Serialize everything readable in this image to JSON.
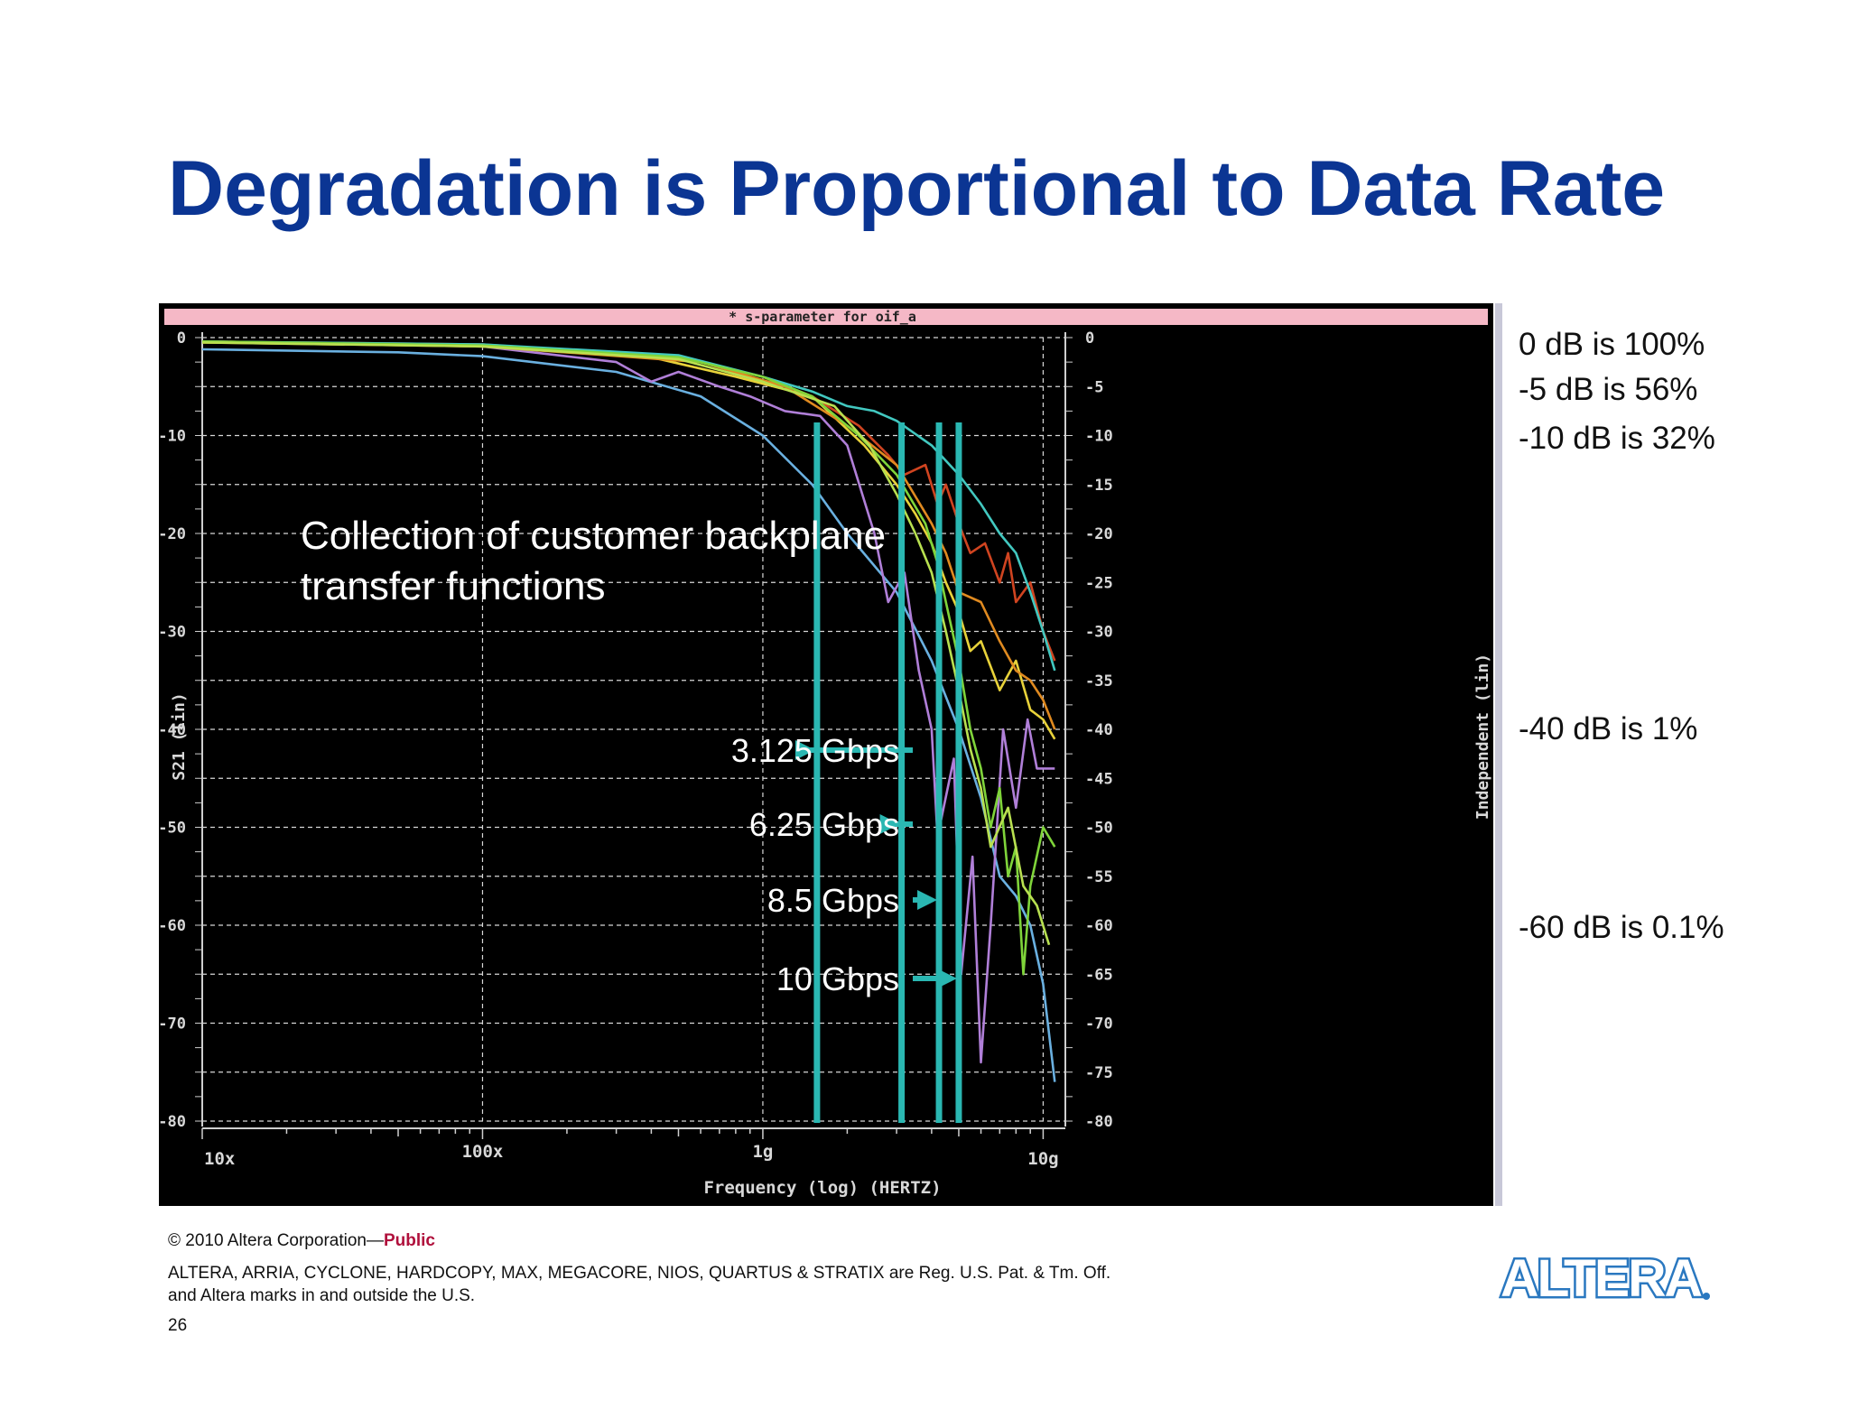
{
  "slide": {
    "title": "Degradation is Proportional to Data Rate",
    "page_number": "26",
    "copyright": "© 2010 Altera Corporation—",
    "public_label": "Public",
    "trademark_line1": "ALTERA, ARRIA, CYCLONE, HARDCOPY, MAX, MEGACORE, NIOS, QUARTUS & STRATIX are Reg. U.S. Pat. & Tm. Off.",
    "trademark_line2": "and Altera marks in and outside the U.S.",
    "logo_text": "ALTERA",
    "percent_notes": [
      {
        "text": "0 dB is 100%"
      },
      {
        "text": "-5 dB is 56%"
      },
      {
        "text": "-10 dB is 32%"
      },
      {
        "text": "-40 dB is 1%"
      },
      {
        "text": "-60 dB is 0.1%"
      }
    ]
  },
  "chart_data": {
    "type": "line",
    "title": "* s-parameter for oif_a",
    "xlabel": "Frequency (log) (HERTZ)",
    "ylabel": "S21 (lin)",
    "ylabel_right": "Independent (lin)",
    "x_scale": "log",
    "xlim": [
      10000000,
      12000000000
    ],
    "ylim": [
      -80,
      0
    ],
    "x_ticks": [
      {
        "value": 10000000,
        "label": "10x"
      },
      {
        "value": 100000000,
        "label": "100x"
      },
      {
        "value": 1000000000,
        "label": "1g"
      },
      {
        "value": 10000000000,
        "label": "10g"
      }
    ],
    "y_ticks_left": [
      "0",
      "-10",
      "-20",
      "-30",
      "-40",
      "-50",
      "-60",
      "-70",
      "-80"
    ],
    "y_ticks_right": [
      "0",
      "-5",
      "-10",
      "-15",
      "-20",
      "-25",
      "-30",
      "-35",
      "-40",
      "-45",
      "-50",
      "-55",
      "-60",
      "-65",
      "-70",
      "-75",
      "-80"
    ],
    "grid": true,
    "annotation": "Collection of customer backplane transfer functions",
    "annotation_line1": "Collection of customer backplane",
    "annotation_line2": "transfer functions",
    "colors": {
      "background": "#000000",
      "title_bar": "#f5b8c6",
      "marker": "#2ab7b2",
      "axis": "#cfcfcf",
      "grid": "#d8d8d8"
    },
    "markers": [
      {
        "label": "3.125 Gbps",
        "x": 1560000000
      },
      {
        "label": "6.25 Gbps",
        "x": 3125000000
      },
      {
        "label": "8.5 Gbps",
        "x": 4250000000
      },
      {
        "label": "10 Gbps",
        "x": 5000000000
      }
    ],
    "series": [
      {
        "color": "#6ab0e0",
        "points": [
          [
            10000000,
            -1.2
          ],
          [
            50000000,
            -1.5
          ],
          [
            100000000,
            -1.9
          ],
          [
            300000000,
            -3.5
          ],
          [
            600000000,
            -6
          ],
          [
            1000000000,
            -10
          ],
          [
            1500000000,
            -15
          ],
          [
            2000000000,
            -20
          ],
          [
            3000000000,
            -26
          ],
          [
            4000000000,
            -33
          ],
          [
            5000000000,
            -40
          ],
          [
            6000000000,
            -47
          ],
          [
            7000000000,
            -55
          ],
          [
            8000000000,
            -57
          ],
          [
            9000000000,
            -60
          ],
          [
            10000000000,
            -66
          ],
          [
            11000000000,
            -76
          ]
        ]
      },
      {
        "color": "#b07fd8",
        "points": [
          [
            10000000,
            -0.4
          ],
          [
            100000000,
            -0.9
          ],
          [
            300000000,
            -2.5
          ],
          [
            400000000,
            -4.5
          ],
          [
            500000000,
            -3.5
          ],
          [
            700000000,
            -5
          ],
          [
            900000000,
            -6
          ],
          [
            1200000000,
            -7.5
          ],
          [
            1600000000,
            -8
          ],
          [
            2000000000,
            -11
          ],
          [
            2500000000,
            -20
          ],
          [
            2800000000,
            -27
          ],
          [
            3200000000,
            -24
          ],
          [
            3600000000,
            -34
          ],
          [
            4000000000,
            -40
          ],
          [
            4200000000,
            -51
          ],
          [
            4800000000,
            -43
          ],
          [
            5100000000,
            -65
          ],
          [
            5600000000,
            -53
          ],
          [
            6000000000,
            -74
          ],
          [
            6500000000,
            -60
          ],
          [
            7200000000,
            -40
          ],
          [
            8000000000,
            -48
          ],
          [
            8800000000,
            -39
          ],
          [
            9500000000,
            -44
          ],
          [
            11000000000,
            -44
          ]
        ]
      },
      {
        "color": "#e8d23a",
        "points": [
          [
            10000000,
            -0.4
          ],
          [
            100000000,
            -0.8
          ],
          [
            400000000,
            -2
          ],
          [
            800000000,
            -4
          ],
          [
            1500000000,
            -6
          ],
          [
            2300000000,
            -11
          ],
          [
            3000000000,
            -15
          ],
          [
            3500000000,
            -18
          ],
          [
            4000000000,
            -21
          ],
          [
            4500000000,
            -25
          ],
          [
            5000000000,
            -28
          ],
          [
            5500000000,
            -32
          ],
          [
            6000000000,
            -31
          ],
          [
            7000000000,
            -36
          ],
          [
            8000000000,
            -33
          ],
          [
            9000000000,
            -38
          ],
          [
            10000000000,
            -39
          ],
          [
            11000000000,
            -41
          ]
        ]
      },
      {
        "color": "#d04420",
        "points": [
          [
            10000000,
            -0.4
          ],
          [
            100000000,
            -0.7
          ],
          [
            500000000,
            -2
          ],
          [
            1000000000,
            -4
          ],
          [
            1500000000,
            -6
          ],
          [
            2200000000,
            -9
          ],
          [
            2800000000,
            -12
          ],
          [
            3200000000,
            -14
          ],
          [
            3800000000,
            -13
          ],
          [
            4200000000,
            -17
          ],
          [
            4500000000,
            -15
          ],
          [
            5000000000,
            -19
          ],
          [
            5500000000,
            -22
          ],
          [
            6200000000,
            -21
          ],
          [
            7000000000,
            -25
          ],
          [
            7500000000,
            -22
          ],
          [
            8000000000,
            -27
          ],
          [
            9000000000,
            -25
          ],
          [
            10000000000,
            -30
          ],
          [
            11000000000,
            -33
          ]
        ]
      },
      {
        "color": "#e08a20",
        "points": [
          [
            10000000,
            -0.5
          ],
          [
            100000000,
            -0.9
          ],
          [
            600000000,
            -2.5
          ],
          [
            1200000000,
            -5
          ],
          [
            2000000000,
            -9
          ],
          [
            3000000000,
            -13
          ],
          [
            4000000000,
            -19
          ],
          [
            4500000000,
            -22
          ],
          [
            5000000000,
            -26
          ],
          [
            6000000000,
            -27
          ],
          [
            7000000000,
            -31
          ],
          [
            8000000000,
            -34
          ],
          [
            9000000000,
            -35
          ],
          [
            10000000000,
            -37
          ],
          [
            11000000000,
            -40
          ]
        ]
      },
      {
        "color": "#42c8c0",
        "points": [
          [
            10000000,
            -0.4
          ],
          [
            100000000,
            -0.7
          ],
          [
            500000000,
            -1.8
          ],
          [
            1000000000,
            -4
          ],
          [
            1500000000,
            -5.5
          ],
          [
            2000000000,
            -7
          ],
          [
            2500000000,
            -7.5
          ],
          [
            3000000000,
            -8.5
          ],
          [
            4000000000,
            -11
          ],
          [
            5000000000,
            -14
          ],
          [
            6000000000,
            -17
          ],
          [
            7000000000,
            -20
          ],
          [
            8000000000,
            -22
          ],
          [
            9000000000,
            -26
          ],
          [
            10000000000,
            -30
          ],
          [
            11000000000,
            -34
          ]
        ]
      },
      {
        "color": "#7fd43a",
        "points": [
          [
            10000000,
            -0.4
          ],
          [
            100000000,
            -0.8
          ],
          [
            500000000,
            -2
          ],
          [
            1000000000,
            -4
          ],
          [
            1500000000,
            -6
          ],
          [
            2200000000,
            -10
          ],
          [
            3000000000,
            -14
          ],
          [
            3800000000,
            -19
          ],
          [
            4200000000,
            -23
          ],
          [
            4500000000,
            -27
          ],
          [
            5000000000,
            -33
          ],
          [
            5500000000,
            -40
          ],
          [
            6000000000,
            -44
          ],
          [
            6500000000,
            -50
          ],
          [
            7000000000,
            -46
          ],
          [
            7500000000,
            -55
          ],
          [
            8000000000,
            -52
          ],
          [
            8500000000,
            -65
          ],
          [
            9000000000,
            -56
          ],
          [
            10000000000,
            -50
          ],
          [
            11000000000,
            -52
          ]
        ]
      },
      {
        "color": "#b8e050",
        "points": [
          [
            10000000,
            -0.5
          ],
          [
            100000000,
            -0.9
          ],
          [
            500000000,
            -2.2
          ],
          [
            1000000000,
            -4.5
          ],
          [
            1800000000,
            -7
          ],
          [
            2400000000,
            -11
          ],
          [
            3000000000,
            -16
          ],
          [
            3500000000,
            -20
          ],
          [
            4000000000,
            -24
          ],
          [
            4500000000,
            -30
          ],
          [
            5000000000,
            -36
          ],
          [
            5500000000,
            -42
          ],
          [
            6000000000,
            -46
          ],
          [
            6500000000,
            -52
          ],
          [
            7500000000,
            -48
          ],
          [
            8500000000,
            -56
          ],
          [
            9500000000,
            -58
          ],
          [
            10500000000,
            -62
          ]
        ]
      }
    ]
  }
}
